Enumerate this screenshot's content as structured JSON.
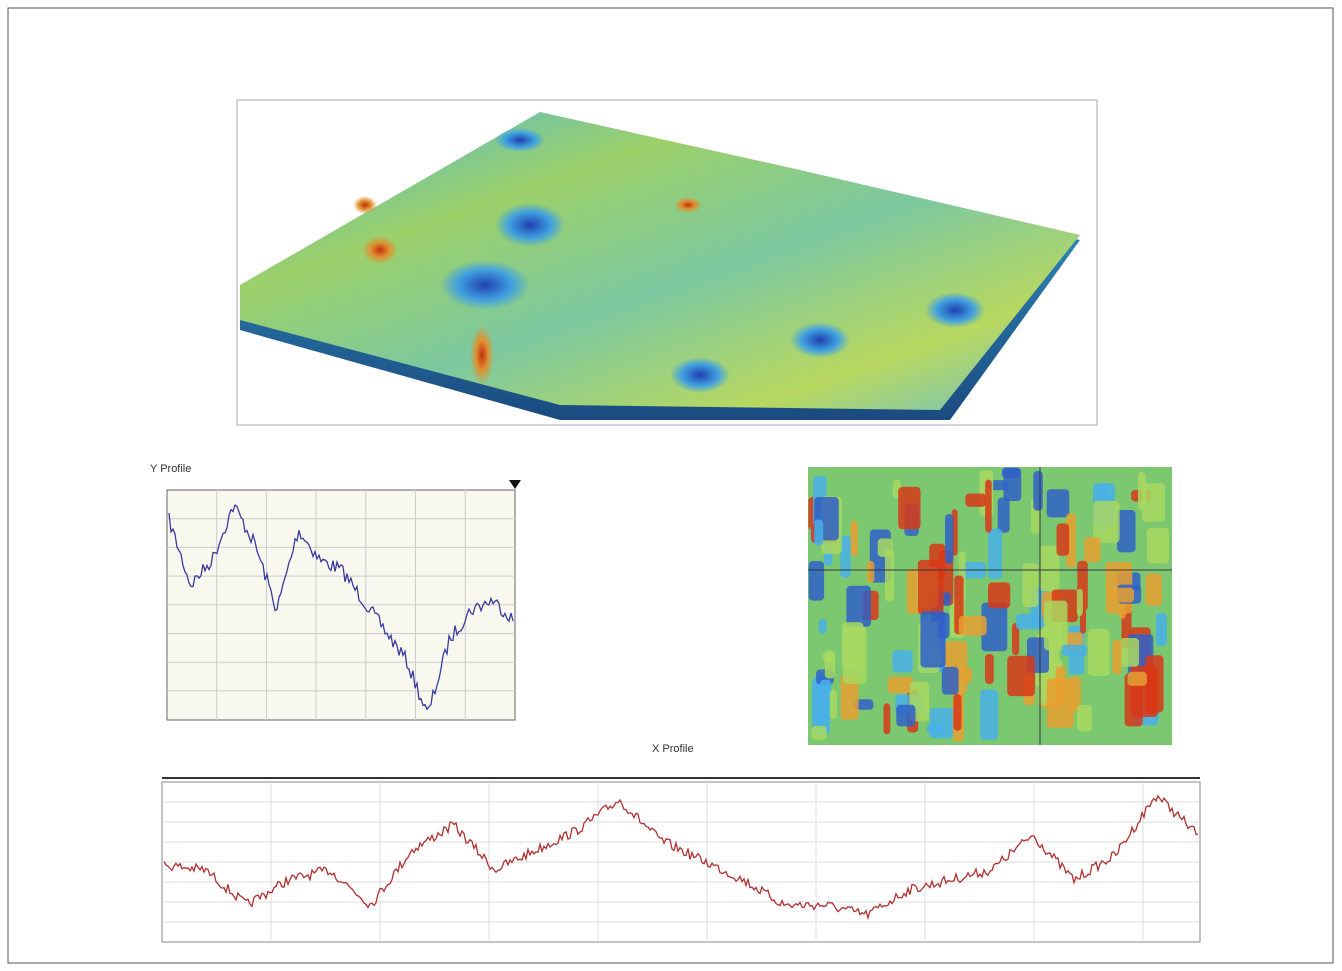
{
  "panels": {
    "y_profile": {
      "title": "Y Profile"
    },
    "x_profile": {
      "title": "X Profile"
    }
  }
}
